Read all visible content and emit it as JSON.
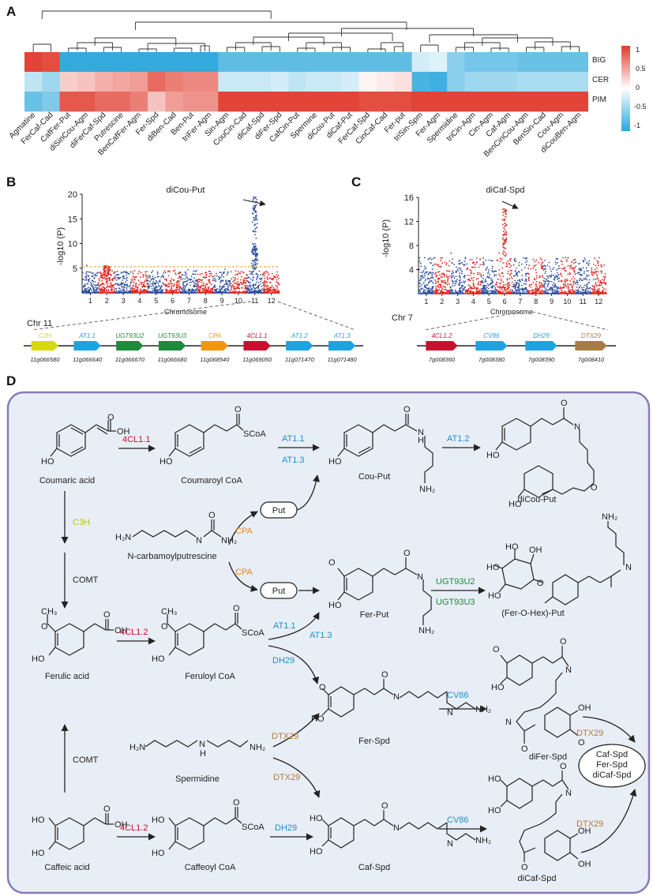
{
  "panels": {
    "a": "A",
    "b": "B",
    "c": "C",
    "d": "D"
  },
  "heatmap": {
    "columns": [
      "Agmatine",
      "FerCaf-Cad",
      "CafFer-Put",
      "diSinCou-Agm",
      "diFerCaf-Spd",
      "Putrescine",
      "BenCafFer-Agm",
      "Fer-Spd",
      "diBen-Cad",
      "Ben-Put",
      "triFer-Agm",
      "Sin-Agm",
      "CouCin-Cad",
      "diCaf-Spd",
      "diFer-Spd",
      "CafCin-Put",
      "Spermine",
      "diCou-Put",
      "diCaf-Put",
      "FerCaf-Spd",
      "CinCaf-Cad",
      "Fer-put",
      "triSin-Spm",
      "Fer-Agm",
      "Spermidine",
      "triCin-Agm",
      "Cin-Agm",
      "Caf-Agm",
      "BenCinCou-Agm",
      "BenSin-Cad",
      "Cou-Agm",
      "diCouBen-Agm"
    ],
    "rows": [
      "BIG",
      "CER",
      "PIM"
    ],
    "values": [
      [
        0.95,
        0.9,
        -0.95,
        -0.95,
        -0.95,
        -0.95,
        -0.95,
        -0.95,
        -0.95,
        -0.95,
        -0.95,
        -0.75,
        -0.75,
        -0.75,
        -0.75,
        -0.75,
        -0.75,
        -0.75,
        -0.75,
        -0.75,
        -0.75,
        -0.75,
        -0.2,
        -0.15,
        -0.55,
        -0.65,
        -0.65,
        -0.65,
        -0.7,
        -0.7,
        -0.7,
        -0.7
      ],
      [
        -0.3,
        -0.45,
        0.25,
        0.3,
        0.4,
        0.45,
        0.5,
        0.75,
        0.65,
        0.6,
        0.6,
        -0.25,
        -0.25,
        -0.25,
        -0.2,
        -0.3,
        -0.25,
        -0.25,
        -0.2,
        0.05,
        0.1,
        0.15,
        -0.85,
        -0.9,
        -0.55,
        -0.45,
        -0.45,
        -0.45,
        -0.4,
        -0.4,
        -0.4,
        -0.4
      ],
      [
        -0.7,
        -0.6,
        0.85,
        0.85,
        0.75,
        0.75,
        0.65,
        0.3,
        0.5,
        0.55,
        0.55,
        0.95,
        0.95,
        0.95,
        0.95,
        0.95,
        0.95,
        0.95,
        0.95,
        0.9,
        0.9,
        0.9,
        0.95,
        0.95,
        0.95,
        0.95,
        0.95,
        0.95,
        0.95,
        0.95,
        0.95,
        0.95
      ]
    ],
    "colorbar_ticks": [
      "1",
      "0.5",
      "0",
      "-0.5",
      "-1"
    ],
    "colors": {
      "high": "#e03a2c",
      "mid": "#ffffff",
      "low": "#2aa7db"
    }
  },
  "manhattan_b": {
    "title": "diCou-Put",
    "ylabel": "-log10 (P)",
    "xlabel": "Chromosome",
    "yticks": [
      "5",
      "10",
      "15",
      "20"
    ],
    "ymax": 20,
    "threshold": 5.3,
    "peak": {
      "chromosome": 11,
      "value": 19.5
    },
    "chromosomes": [
      "1",
      "2",
      "3",
      "4",
      "5",
      "6",
      "7",
      "8",
      "9",
      "10",
      "11",
      "12"
    ],
    "colors": {
      "odd": "#2d4ea0",
      "even": "#e3241f",
      "threshold": "#f0a030"
    }
  },
  "manhattan_c": {
    "title": "diCaf-Spd",
    "ylabel": "-log10 (P)",
    "xlabel": "Chromosome",
    "yticks": [
      "4",
      "8",
      "12",
      "16"
    ],
    "ymax": 16,
    "peak": {
      "chromosome": 6,
      "value": 14.2
    },
    "chromosomes": [
      "1",
      "2",
      "3",
      "4",
      "5",
      "6",
      "7",
      "8",
      "9",
      "10",
      "11",
      "12"
    ]
  },
  "locus_b": {
    "chr": "Chr 11",
    "genes": [
      {
        "name": "C3H",
        "id": "11g066580",
        "color": "#d8d80e"
      },
      {
        "name": "AT1.1",
        "id": "11g066640",
        "color": "#1fa3e0"
      },
      {
        "name": "UGT93U2",
        "id": "11g066670",
        "color": "#1d8a3c"
      },
      {
        "name": "UGT93U3",
        "id": "11g066680",
        "color": "#1d8a3c"
      },
      {
        "name": "CPA",
        "id": "11g068540",
        "color": "#f0960f"
      },
      {
        "name": "4CL1.1",
        "id": "11g069050",
        "color": "#c8102e"
      },
      {
        "name": "AT1.2",
        "id": "11g071470",
        "color": "#1fa3e0"
      },
      {
        "name": "AT1.3",
        "id": "11g071480",
        "color": "#1fa3e0"
      }
    ]
  },
  "locus_c": {
    "chr": "Chr 7",
    "genes": [
      {
        "name": "4CL1.2",
        "id": "7g008360",
        "color": "#c8102e"
      },
      {
        "name": "CV86",
        "id": "7g008380",
        "color": "#1fa3e0"
      },
      {
        "name": "DH29",
        "id": "7g008390",
        "color": "#1fa3e0"
      },
      {
        "name": "DTX29",
        "id": "7g008410",
        "color": "#a67c45"
      }
    ]
  },
  "pathway": {
    "compounds": {
      "coumaric_acid": "Coumaric acid",
      "coumaroyl_coa": "Coumaroyl CoA",
      "cou_put": "Cou-Put",
      "dicou_put": "diCou-Put",
      "put_1": "Put",
      "put_2": "Put",
      "ncp": "N-carbamoylputrescine",
      "ferulic_acid": "Ferulic acid",
      "feruloyl_coa": "Feruloyl CoA",
      "fer_put": "Fer-Put",
      "fer_o_hex_put": "(Fer-O-Hex)-Put",
      "fer_spd": "Fer-Spd",
      "difer_spd": "diFer-Spd",
      "spermidine": "Spermidine",
      "caffeic_acid": "Caffeic acid",
      "caffeoyl_coa": "Caffeoyl CoA",
      "caf_spd": "Caf-Spd",
      "dicaf_spd": "diCaf-Spd",
      "product_set": [
        "Caf-Spd",
        "Fer-Spd",
        "diCaf-Spd"
      ]
    },
    "enzymes": {
      "cl11": "4CL1.1",
      "at11_top": "AT1.1",
      "at13_top": "AT1.3",
      "at12": "AT1.2",
      "cpa_1": "CPA",
      "cpa_2": "CPA",
      "c3h": "C3H",
      "comt_1": "COMT",
      "comt_2": "COMT",
      "cl12_a": "4CL1.2",
      "cl12_b": "4CL1.2",
      "ugt93u2": "UGT93U2",
      "ugt93u3": "UGT93U3",
      "at11_mid": "AT1.1",
      "at13_mid": "AT1.3",
      "dh29_1": "DH29",
      "dh29_2": "DH29",
      "dtx29_1": "DTX29",
      "dtx29_2": "DTX29",
      "dtx29_3": "DTX29",
      "dtx29_4": "DTX29",
      "cv86_1": "CV86",
      "cv86_2": "CV86"
    },
    "atoms": {
      "oh": "OH",
      "ho": "HO",
      "o": "O",
      "nh": "N",
      "h": "H",
      "nh2": "NH₂",
      "h2n": "H₂N",
      "scoa": "SCoA",
      "ch3": "CH₃"
    },
    "colors": {
      "background": "#e8eef6",
      "border": "#8a7bb8",
      "enzyme_red": "#c8102e",
      "enzyme_blue": "#1f8fc8",
      "enzyme_orange": "#e08a1e",
      "enzyme_green": "#1d8a3c",
      "enzyme_yellow": "#b8c41a",
      "enzyme_brown": "#b57a3a"
    }
  }
}
